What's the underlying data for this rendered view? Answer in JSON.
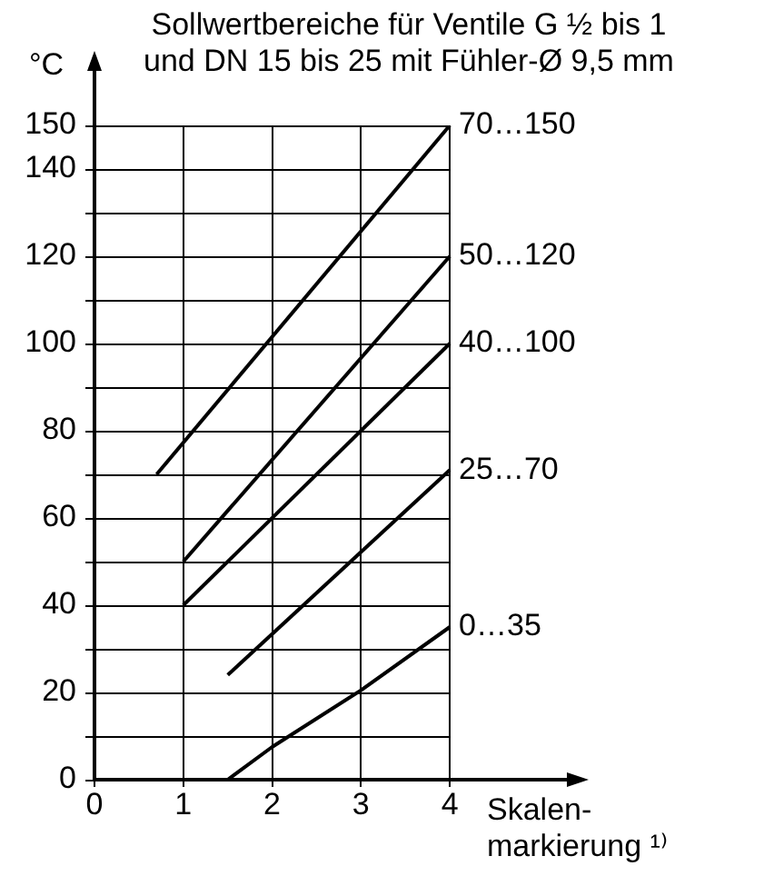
{
  "chart_data": {
    "type": "line",
    "title": "Sollwertbereiche für Ventile G ½ bis 1 und DN 15 bis 25 mit Fühler-Ø 9,5 mm",
    "ylabel": "°C",
    "xlabel": "Skalen-\nmarkierung ¹⁾",
    "series": [
      {
        "name": "70…150",
        "color": "#000000",
        "x": [
          0.7,
          4
        ],
        "values": [
          70,
          150
        ]
      },
      {
        "name": "50…120",
        "color": "#000000",
        "x": [
          1,
          4
        ],
        "values": [
          50,
          120
        ]
      },
      {
        "name": "40…100",
        "color": "#000000",
        "x": [
          1,
          4
        ],
        "values": [
          40,
          100
        ]
      },
      {
        "name": "25…70",
        "color": "#000000",
        "x": [
          1.5,
          4
        ],
        "values": [
          24,
          71
        ]
      },
      {
        "name": "0…35",
        "color": "#000000",
        "x": [
          1.5,
          2,
          3,
          4
        ],
        "values": [
          0,
          7.5,
          20.5,
          35
        ]
      }
    ],
    "xlim": [
      0,
      5.4
    ],
    "xticks": [
      0,
      1,
      2,
      3,
      4
    ],
    "ylim": [
      0,
      150
    ],
    "yticks": [
      0,
      {
        "value": 10,
        "label": null
      },
      20,
      {
        "value": 30,
        "label": null
      },
      40,
      {
        "value": 50,
        "label": null
      },
      60,
      {
        "value": 70,
        "label": null
      },
      80,
      {
        "value": 90,
        "label": null
      },
      100,
      {
        "value": 110,
        "label": null
      },
      120,
      {
        "value": 130,
        "label": null
      },
      140,
      150
    ],
    "grid": true,
    "legend": false,
    "marker": "none",
    "line_style": "solid"
  }
}
